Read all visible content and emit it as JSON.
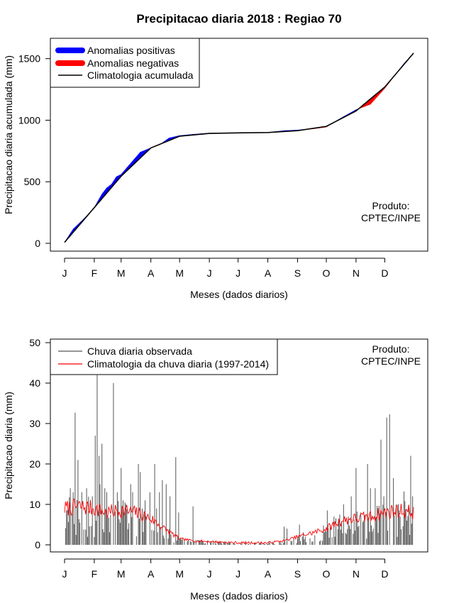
{
  "title": "Precipitacao diaria 2018 : Regiao 70",
  "months": [
    "J",
    "F",
    "M",
    "A",
    "M",
    "J",
    "J",
    "A",
    "S",
    "O",
    "N",
    "D"
  ],
  "product_label": {
    "line1": "Produto:",
    "line2": "CPTEC/INPE"
  },
  "colors": {
    "positive": "#0000ff",
    "negative": "#ff0000",
    "climatology": "#000000",
    "observed": "#555555",
    "clim_daily": "#ff0000"
  },
  "chart_data": [
    {
      "type": "area",
      "title": "Precipitacao diaria 2018 : Regiao 70",
      "xlabel": "Meses (dados diarios)",
      "ylabel": "Precipitacao diaria acumulada (mm)",
      "xlim": [
        1,
        365
      ],
      "ylim": [
        0,
        1550
      ],
      "yticks": [
        0,
        500,
        1000,
        1500
      ],
      "month_starts": [
        1,
        32,
        60,
        91,
        121,
        152,
        182,
        213,
        244,
        274,
        305,
        335
      ],
      "legend": [
        {
          "label": "Anomalias positivas",
          "color": "#0000ff",
          "kind": "thick"
        },
        {
          "label": "Anomalias negativas",
          "color": "#ff0000",
          "kind": "thick"
        },
        {
          "label": "Climatologia acumulada",
          "color": "#000000",
          "kind": "line"
        }
      ],
      "legend_position": "top-left",
      "climatology_cumulative": {
        "day": [
          1,
          32,
          60,
          91,
          121,
          152,
          182,
          213,
          244,
          274,
          305,
          335,
          365
        ],
        "value": [
          8,
          290,
          545,
          775,
          870,
          893,
          897,
          900,
          915,
          950,
          1075,
          1270,
          1545
        ]
      },
      "observed_cumulative": {
        "day": [
          1,
          10,
          20,
          30,
          32,
          40,
          45,
          50,
          55,
          60,
          70,
          80,
          91,
          100,
          110,
          121,
          135,
          152,
          170,
          182,
          200,
          213,
          230,
          244,
          260,
          274,
          290,
          305,
          320,
          335,
          345,
          355,
          365
        ],
        "value": [
          8,
          115,
          190,
          270,
          290,
          400,
          450,
          480,
          540,
          560,
          650,
          740,
          775,
          800,
          855,
          875,
          885,
          895,
          897,
          897,
          898,
          900,
          915,
          920,
          930,
          945,
          1020,
          1085,
          1130,
          1260,
          1360,
          1460,
          1545
        ]
      }
    },
    {
      "type": "bar",
      "title": "",
      "xlabel": "Meses (dados diarios)",
      "ylabel": "Precipitacao diaria (mm)",
      "xlim": [
        1,
        365
      ],
      "ylim": [
        0,
        50
      ],
      "yticks": [
        0,
        10,
        20,
        30,
        40,
        50
      ],
      "month_starts": [
        1,
        32,
        60,
        91,
        121,
        152,
        182,
        213,
        244,
        274,
        305,
        335
      ],
      "legend": [
        {
          "label": "Chuva diaria observada",
          "color": "#555555",
          "kind": "line"
        },
        {
          "label": "Climatologia da chuva diaria (1997-2014)",
          "color": "#ff0000",
          "kind": "line"
        }
      ],
      "legend_position": "top-left",
      "climatology_daily_profile": {
        "day": [
          1,
          15,
          32,
          45,
          60,
          75,
          91,
          105,
          121,
          135,
          152,
          182,
          213,
          230,
          244,
          260,
          274,
          290,
          305,
          320,
          335,
          350,
          365
        ],
        "value": [
          9,
          9.5,
          9,
          8,
          8.5,
          8,
          6.5,
          4,
          1.5,
          1,
          0.8,
          0.5,
          0.5,
          1,
          2,
          3,
          4,
          6,
          6.5,
          7,
          8,
          8.5,
          8
        ]
      },
      "observed_peaks": {
        "day": [
          7,
          10,
          12,
          15,
          19,
          24,
          30,
          33,
          35,
          37,
          38,
          40,
          43,
          45,
          52,
          56,
          60,
          62,
          65,
          70,
          72,
          78,
          80,
          85,
          90,
          95,
          97,
          100,
          103,
          107,
          111,
          117,
          120,
          135,
          230,
          233,
          246,
          275,
          278,
          282,
          288,
          292,
          297,
          300,
          305,
          310,
          313,
          317,
          320,
          325,
          331,
          334,
          337,
          340,
          344,
          347,
          351,
          355,
          358,
          362,
          364
        ],
        "value": [
          14,
          13,
          32.7,
          21,
          13,
          14,
          12,
          27,
          42,
          22,
          15,
          25,
          14,
          13,
          40,
          13,
          19,
          11,
          10,
          15,
          13,
          20,
          18,
          11,
          13,
          20,
          9,
          13,
          16,
          15,
          12,
          21.7,
          8,
          9.5,
          4.5,
          4,
          5,
          8.5,
          5,
          7,
          7.5,
          10,
          7,
          12,
          19,
          8,
          6,
          20,
          14,
          14,
          26,
          12,
          31.5,
          32.3,
          16.5,
          10,
          7,
          13.2,
          6,
          22,
          12
        ]
      }
    }
  ]
}
